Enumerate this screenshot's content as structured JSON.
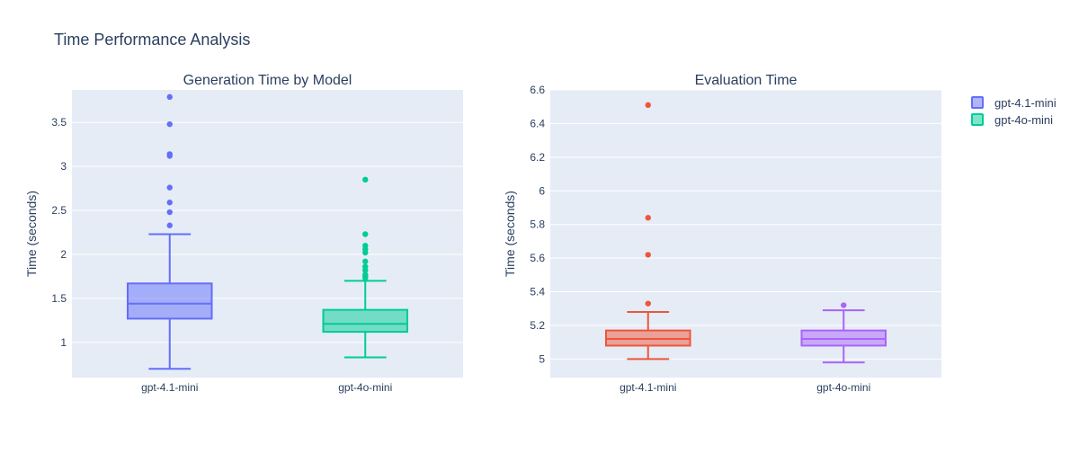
{
  "figure": {
    "title": "Time Performance Analysis",
    "background": "#ffffff",
    "plot_background": "#e5ecf6",
    "gridline_color": "#ffffff",
    "text_color": "#2a3f5f"
  },
  "legend": {
    "placement": "top-right",
    "entries": [
      {
        "name": "gpt-4.1-mini",
        "color": "#636efa"
      },
      {
        "name": "gpt-4o-mini",
        "color": "#00cc96"
      }
    ]
  },
  "chart_data": [
    {
      "type": "box",
      "title": "Generation Time by Model",
      "xlabel": "",
      "ylabel": "Time (seconds)",
      "ylim": [
        0.6,
        3.87
      ],
      "yticks": [
        1,
        1.5,
        2,
        2.5,
        3,
        3.5
      ],
      "ytick_labels": [
        "1",
        "1.5",
        "2",
        "2.5",
        "3",
        "3.5"
      ],
      "grid": true,
      "categories": [
        "gpt-4.1-mini",
        "gpt-4o-mini"
      ],
      "series": [
        {
          "name": "gpt-4.1-mini",
          "category": "gpt-4.1-mini",
          "color": "#636efa",
          "fill": "rgba(99,110,250,0.5)",
          "min": 0.7,
          "q1": 1.27,
          "median": 1.44,
          "q3": 1.67,
          "max": 2.23,
          "outliers": [
            2.33,
            2.48,
            2.59,
            2.76,
            3.12,
            3.14,
            3.48,
            3.79
          ]
        },
        {
          "name": "gpt-4o-mini",
          "category": "gpt-4o-mini",
          "color": "#00cc96",
          "fill": "rgba(0,204,150,0.5)",
          "min": 0.83,
          "q1": 1.12,
          "median": 1.21,
          "q3": 1.37,
          "max": 1.7,
          "outliers": [
            1.73,
            1.75,
            1.77,
            1.82,
            1.86,
            1.92,
            2.02,
            2.06,
            2.1,
            2.23,
            2.85
          ]
        }
      ]
    },
    {
      "type": "box",
      "title": "Evaluation Time",
      "xlabel": "",
      "ylabel": "Time (seconds)",
      "ylim": [
        4.89,
        6.6
      ],
      "yticks": [
        5,
        5.2,
        5.4,
        5.6,
        5.8,
        6,
        6.2,
        6.4,
        6.6
      ],
      "ytick_labels": [
        "5",
        "5.2",
        "5.4",
        "5.6",
        "5.8",
        "6",
        "6.2",
        "6.4",
        "6.6"
      ],
      "grid": true,
      "categories": [
        "gpt-4.1-mini",
        "gpt-4o-mini"
      ],
      "series": [
        {
          "name": "",
          "category": "gpt-4.1-mini",
          "color": "#ef553b",
          "fill": "rgba(239,85,59,0.5)",
          "min": 5.0,
          "q1": 5.08,
          "median": 5.12,
          "q3": 5.17,
          "max": 5.28,
          "outliers": [
            5.33,
            5.62,
            5.84,
            6.51
          ]
        },
        {
          "name": "",
          "category": "gpt-4o-mini",
          "color": "#ab63fa",
          "fill": "rgba(171,99,250,0.5)",
          "min": 4.98,
          "q1": 5.08,
          "median": 5.12,
          "q3": 5.17,
          "max": 5.29,
          "outliers": [
            5.32
          ]
        }
      ]
    }
  ]
}
